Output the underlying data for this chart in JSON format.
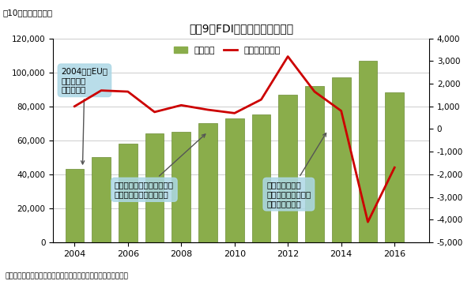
{
  "title": "図表9　FDI（ストック）の推移",
  "ylabel_left": "（10億フォリント）",
  "source": "（出所：ハンガリー中銀より住友商事グローバルリサーチ作成）",
  "years": [
    2004,
    2005,
    2006,
    2007,
    2008,
    2009,
    2010,
    2011,
    2012,
    2013,
    2014,
    2015,
    2016
  ],
  "stock": [
    43000,
    50000,
    58000,
    64000,
    65000,
    70000,
    73000,
    75000,
    87000,
    92000,
    97000,
    107000,
    88000
  ],
  "flow": [
    1000,
    1700,
    1650,
    750,
    1050,
    850,
    700,
    1300,
    3200,
    1650,
    800,
    -4100,
    -1700
  ],
  "bar_color": "#8AAD4B",
  "bar_edge_color": "#6B8C35",
  "line_color": "#CC0000",
  "ylim_left": [
    0,
    120000
  ],
  "ylim_right": [
    -5000,
    4000
  ],
  "yticks_left": [
    0,
    20000,
    40000,
    60000,
    80000,
    100000,
    120000
  ],
  "yticks_right": [
    -5000,
    -4000,
    -3000,
    -2000,
    -1000,
    0,
    1000,
    2000,
    3000,
    4000
  ],
  "background_color": "#ffffff",
  "grid_color": "#cccccc",
  "annotation1_text": "2004年、EU加\n盟を契機に\n投資が増加",
  "annotation2_text": "自動車を中心に大型投資が\n流入、投資分野の多角化",
  "annotation3_text": "大型投資の一服\n欧州債務危機の影響\nから投資が純化",
  "legend_stock": "ストック",
  "legend_flow": "フロー（右軸）",
  "callout_color": "#ADD8E6"
}
